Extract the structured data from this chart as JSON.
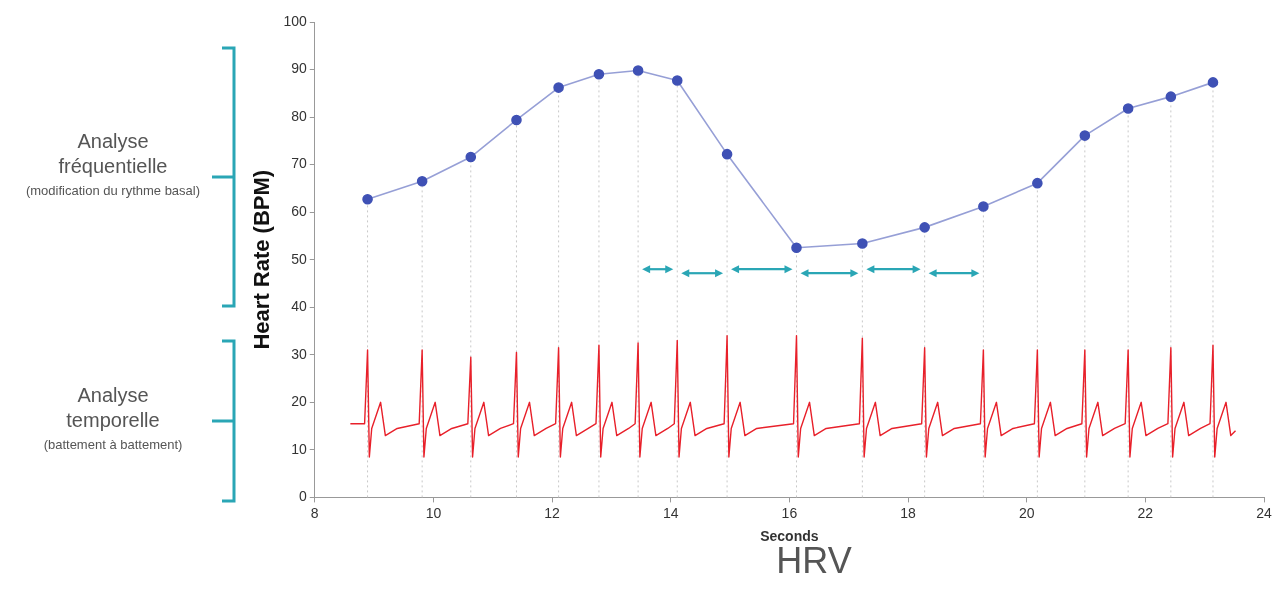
{
  "chart_data": {
    "type": "line",
    "title": "HRV",
    "xlabel": "Seconds",
    "ylabel": "Heart Rate (BPM)",
    "xlim": [
      8,
      24
    ],
    "xticks": [
      8,
      10,
      12,
      14,
      16,
      18,
      20,
      22,
      24
    ],
    "ylim": [
      0,
      100
    ],
    "yticks": [
      0,
      10,
      20,
      30,
      40,
      50,
      60,
      70,
      80,
      90,
      100
    ],
    "grid": false,
    "legend": false,
    "annotations": [
      "Analyse fréquentielle",
      "(modification du rythme basal)",
      "Analyse temporelle",
      "(battement à battement)"
    ],
    "series": [
      {
        "color": "#3f51b5",
        "marker": "circle",
        "x": [
          8.89,
          9.81,
          10.63,
          11.4,
          12.11,
          12.79,
          13.45,
          14.11,
          14.95,
          16.12,
          17.23,
          18.28,
          19.27,
          20.18,
          20.98,
          21.71,
          22.43,
          23.14
        ],
        "values": [
          62.7,
          66.5,
          71.6,
          79.4,
          86.2,
          89.0,
          89.8,
          87.7,
          72.2,
          52.5,
          53.4,
          56.8,
          61.2,
          66.1,
          76.1,
          81.8,
          84.3,
          87.3
        ]
      },
      {
        "color": "#e8202a",
        "marker": "none",
        "x": [
          8.6,
          8.84,
          8.89,
          8.92,
          8.96,
          9.11,
          9.19,
          9.39,
          9.76,
          9.81,
          9.84,
          9.88,
          10.03,
          10.11,
          10.31,
          10.58,
          10.63,
          10.66,
          10.7,
          10.85,
          10.93,
          11.13,
          11.35,
          11.4,
          11.43,
          11.47,
          11.62,
          11.7,
          11.9,
          12.06,
          12.11,
          12.14,
          12.18,
          12.33,
          12.41,
          12.61,
          12.74,
          12.79,
          12.82,
          12.86,
          13.01,
          13.09,
          13.29,
          13.4,
          13.45,
          13.48,
          13.52,
          13.67,
          13.75,
          13.95,
          14.06,
          14.11,
          14.14,
          14.18,
          14.33,
          14.41,
          14.61,
          14.9,
          14.95,
          14.98,
          15.02,
          15.17,
          15.25,
          15.45,
          16.07,
          16.12,
          16.15,
          16.19,
          16.34,
          16.42,
          16.62,
          17.18,
          17.23,
          17.26,
          17.3,
          17.45,
          17.53,
          17.73,
          18.23,
          18.28,
          18.31,
          18.35,
          18.5,
          18.58,
          18.78,
          19.22,
          19.27,
          19.3,
          19.34,
          19.49,
          19.57,
          19.77,
          20.13,
          20.18,
          20.21,
          20.25,
          20.4,
          20.48,
          20.68,
          20.93,
          20.98,
          21.01,
          21.05,
          21.2,
          21.28,
          21.48,
          21.66,
          21.71,
          21.74,
          21.78,
          21.93,
          22.01,
          22.21,
          22.38,
          22.43,
          22.46,
          22.5,
          22.65,
          22.73,
          22.93,
          23.09,
          23.14,
          23.17,
          23.21,
          23.36,
          23.44,
          23.52
        ],
        "values": [
          15.5,
          15.5,
          31,
          8.5,
          14.5,
          20,
          13,
          14.5,
          15.5,
          31,
          8.5,
          14.5,
          20,
          13,
          14.5,
          15.5,
          29.5,
          8.5,
          14.5,
          20,
          13,
          14.5,
          15.5,
          30.5,
          8.5,
          14.5,
          20,
          13,
          14.5,
          15.5,
          31.5,
          8.5,
          14.5,
          20,
          13,
          14.5,
          15.5,
          32,
          8.5,
          14.5,
          20,
          13,
          14.5,
          15.5,
          32.5,
          8.5,
          14.5,
          20,
          13,
          14.5,
          15.5,
          33,
          8.5,
          14.5,
          20,
          13,
          14.5,
          15.5,
          34,
          8.5,
          14.5,
          20,
          13,
          14.5,
          15.5,
          34,
          8.5,
          14.5,
          20,
          13,
          14.5,
          15.5,
          33.5,
          8.5,
          14.5,
          20,
          13,
          14.5,
          15.5,
          31.5,
          8.5,
          14.5,
          20,
          13,
          14.5,
          15.5,
          31,
          8.5,
          14.5,
          20,
          13,
          14.5,
          15.5,
          31,
          8.5,
          14.5,
          20,
          13,
          14.5,
          15.5,
          31,
          8.5,
          14.5,
          20,
          13,
          14.5,
          15.5,
          31,
          8.5,
          14.5,
          20,
          13,
          14.5,
          15.5,
          31.5,
          8.5,
          14.5,
          20,
          13,
          14.5,
          15.5,
          32,
          8.5,
          14.5,
          20,
          13,
          14
        ]
      }
    ],
    "ref_lines": [
      {
        "axis": "x",
        "value": 8.89,
        "color": "#c8c8c8",
        "line_style": "dotted"
      },
      {
        "axis": "x",
        "value": 9.81,
        "color": "#c8c8c8",
        "line_style": "dotted"
      },
      {
        "axis": "x",
        "value": 10.63,
        "color": "#c8c8c8",
        "line_style": "dotted"
      },
      {
        "axis": "x",
        "value": 11.4,
        "color": "#c8c8c8",
        "line_style": "dotted"
      },
      {
        "axis": "x",
        "value": 12.11,
        "color": "#c8c8c8",
        "line_style": "dotted"
      },
      {
        "axis": "x",
        "value": 12.79,
        "color": "#c8c8c8",
        "line_style": "dotted"
      },
      {
        "axis": "x",
        "value": 13.45,
        "color": "#c8c8c8",
        "line_style": "dotted"
      },
      {
        "axis": "x",
        "value": 14.11,
        "color": "#c8c8c8",
        "line_style": "dotted"
      },
      {
        "axis": "x",
        "value": 14.95,
        "color": "#c8c8c8",
        "line_style": "dotted"
      },
      {
        "axis": "x",
        "value": 16.12,
        "color": "#c8c8c8",
        "line_style": "dotted"
      },
      {
        "axis": "x",
        "value": 17.23,
        "color": "#c8c8c8",
        "line_style": "dotted"
      },
      {
        "axis": "x",
        "value": 18.28,
        "color": "#c8c8c8",
        "line_style": "dotted"
      },
      {
        "axis": "x",
        "value": 19.27,
        "color": "#c8c8c8",
        "line_style": "dotted"
      },
      {
        "axis": "x",
        "value": 20.18,
        "color": "#c8c8c8",
        "line_style": "dotted"
      },
      {
        "axis": "x",
        "value": 20.98,
        "color": "#c8c8c8",
        "line_style": "dotted"
      },
      {
        "axis": "x",
        "value": 21.71,
        "color": "#c8c8c8",
        "line_style": "dotted"
      },
      {
        "axis": "x",
        "value": 22.43,
        "color": "#c8c8c8",
        "line_style": "dotted"
      },
      {
        "axis": "x",
        "value": 23.14,
        "color": "#c8c8c8",
        "line_style": "dotted"
      }
    ]
  }
}
